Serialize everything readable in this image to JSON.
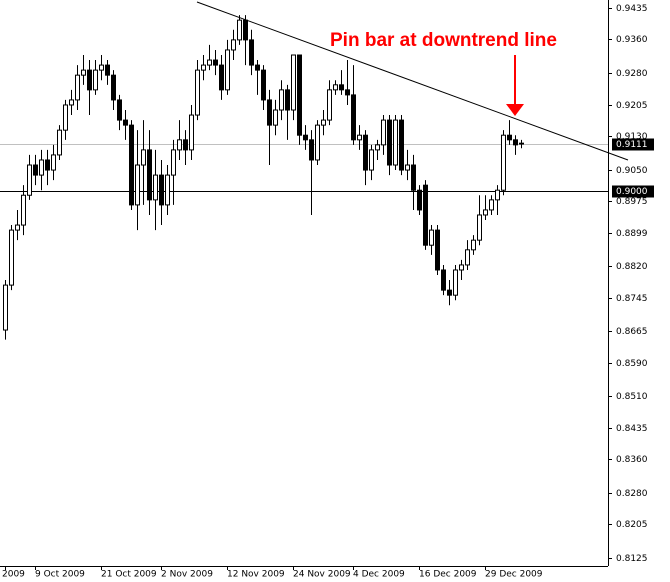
{
  "chart_data": {
    "type": "candlestick",
    "annotation": "Pin bar at downtrend line",
    "categories": [
      "2009",
      null,
      null,
      null,
      null,
      "9 Oct 2009",
      null,
      null,
      null,
      null,
      null,
      null,
      null,
      null,
      null,
      null,
      "21 Oct 2009",
      null,
      null,
      null,
      null,
      null,
      null,
      null,
      null,
      null,
      "2 Nov 2009",
      null,
      null,
      null,
      null,
      null,
      null,
      null,
      null,
      null,
      null,
      "12 Nov 2009",
      null,
      null,
      null,
      null,
      null,
      null,
      null,
      null,
      null,
      null,
      "24 Nov 2009",
      null,
      null,
      null,
      null,
      null,
      null,
      null,
      null,
      null,
      "4 Dec 2009",
      null,
      null,
      null,
      null,
      null,
      null,
      null,
      null,
      null,
      null,
      "16 Dec 2009",
      null,
      null,
      null,
      null,
      null,
      null,
      null,
      null,
      null,
      null,
      "29 Dec 2009",
      null,
      null,
      null,
      null,
      null,
      null
    ],
    "open": [
      0.8668,
      0.8775,
      0.8906,
      0.8918,
      0.8989,
      0.9061,
      0.9037,
      0.9073,
      0.9049,
      0.9085,
      0.9144,
      0.9204,
      0.9216,
      0.9275,
      0.9287,
      0.924,
      0.9287,
      0.9299,
      0.9275,
      0.9216,
      0.9168,
      0.9156,
      0.8966,
      0.9061,
      0.9097,
      0.8978,
      0.9037,
      0.8966,
      0.9037,
      0.9097,
      0.9121,
      0.9097,
      0.918,
      0.9287,
      0.9299,
      0.9311,
      0.9299,
      0.924,
      0.9335,
      0.9359,
      0.9406,
      0.9359,
      0.9299,
      0.9287,
      0.9216,
      0.9156,
      0.9192,
      0.924,
      0.9192,
      0.9323,
      0.9132,
      0.9121,
      0.9073,
      0.9156,
      0.9168,
      0.924,
      0.9252,
      0.924,
      0.9228,
      0.9121,
      0.9132,
      0.9049,
      0.9097,
      0.9109,
      0.9168,
      0.9061,
      0.9168,
      0.9049,
      0.9061,
      0.9001,
      0.9013,
      0.887,
      0.8906,
      0.8811,
      0.8763,
      0.8751,
      0.8811,
      0.8823,
      0.8859,
      0.8882,
      0.8942,
      0.8954,
      0.8978,
      0.9001,
      0.9132,
      0.9121,
      0.9113
    ],
    "high": [
      0.8787,
      0.8918,
      0.8954,
      0.9013,
      0.9085,
      0.9085,
      0.9097,
      0.9097,
      0.9109,
      0.9156,
      0.9216,
      0.924,
      0.9299,
      0.9323,
      0.9311,
      0.9311,
      0.9323,
      0.9311,
      0.9287,
      0.9228,
      0.9192,
      0.9168,
      0.9144,
      0.9168,
      0.9144,
      0.9097,
      0.9073,
      0.9061,
      0.9121,
      0.9168,
      0.9144,
      0.9204,
      0.9311,
      0.9323,
      0.9347,
      0.9335,
      0.9323,
      0.9359,
      0.9383,
      0.9418,
      0.9418,
      0.9383,
      0.9311,
      0.9299,
      0.924,
      0.9216,
      0.9263,
      0.9252,
      0.9323,
      0.9323,
      0.9156,
      0.9144,
      0.9168,
      0.9192,
      0.9263,
      0.9263,
      0.9287,
      0.9311,
      0.9299,
      0.9156,
      0.9144,
      0.9109,
      0.9121,
      0.918,
      0.918,
      0.918,
      0.918,
      0.9097,
      0.9085,
      0.9013,
      0.9025,
      0.8918,
      0.8918,
      0.8823,
      0.8787,
      0.8823,
      0.8835,
      0.8882,
      0.8894,
      0.8989,
      0.8989,
      0.8989,
      0.9013,
      0.9144,
      0.9168,
      0.9132,
      0.9121
    ],
    "low": [
      0.8645,
      0.8763,
      0.8882,
      0.8894,
      0.8978,
      0.9013,
      0.9001,
      0.9013,
      0.9025,
      0.9073,
      0.9121,
      0.918,
      0.9192,
      0.9252,
      0.918,
      0.9228,
      0.9263,
      0.9252,
      0.9192,
      0.9144,
      0.9121,
      0.8954,
      0.8906,
      0.8966,
      0.8942,
      0.8906,
      0.8918,
      0.8942,
      0.8966,
      0.9073,
      0.9061,
      0.9073,
      0.9168,
      0.9263,
      0.9287,
      0.9275,
      0.9216,
      0.9228,
      0.9311,
      0.9347,
      0.9299,
      0.9275,
      0.9228,
      0.9192,
      0.9061,
      0.9132,
      0.9168,
      0.9121,
      0.9168,
      0.9109,
      0.9097,
      0.8942,
      0.9061,
      0.9132,
      0.9156,
      0.9228,
      0.9228,
      0.9204,
      0.9109,
      0.9097,
      0.9013,
      0.9025,
      0.9073,
      0.9085,
      0.9037,
      0.9049,
      0.9037,
      0.9025,
      0.8954,
      0.8942,
      0.8859,
      0.8847,
      0.8799,
      0.8751,
      0.8727,
      0.8739,
      0.8787,
      0.8811,
      0.8847,
      0.887,
      0.893,
      0.8942,
      0.8942,
      0.8989,
      0.9109,
      0.9085,
      0.9101
    ],
    "close": [
      0.8775,
      0.8906,
      0.8918,
      0.8989,
      0.9061,
      0.9037,
      0.9073,
      0.9049,
      0.9085,
      0.9144,
      0.9204,
      0.9216,
      0.9275,
      0.9287,
      0.924,
      0.9287,
      0.9299,
      0.9275,
      0.9216,
      0.9168,
      0.9156,
      0.8966,
      0.9061,
      0.9097,
      0.8978,
      0.9037,
      0.8966,
      0.9037,
      0.9097,
      0.9121,
      0.9097,
      0.918,
      0.9287,
      0.9299,
      0.9311,
      0.9299,
      0.924,
      0.9335,
      0.9359,
      0.9406,
      0.9359,
      0.9299,
      0.9287,
      0.9216,
      0.9156,
      0.9192,
      0.924,
      0.9192,
      0.9323,
      0.9132,
      0.9121,
      0.9073,
      0.9156,
      0.9168,
      0.924,
      0.9252,
      0.924,
      0.9228,
      0.9121,
      0.9132,
      0.9049,
      0.9097,
      0.9109,
      0.9168,
      0.9061,
      0.9168,
      0.9049,
      0.9061,
      0.9001,
      0.8954,
      0.887,
      0.8906,
      0.8811,
      0.8763,
      0.8751,
      0.8811,
      0.8823,
      0.8859,
      0.8882,
      0.8942,
      0.8954,
      0.8978,
      0.9001,
      0.9132,
      0.9121,
      0.9109,
      0.9111
    ],
    "up_color": "#ffffff",
    "down_color": "#000000",
    "ylim": [
      0.8106,
      0.9454
    ],
    "yticks": [
      0.9435,
      {
        "value": 0.936,
        "label": "0.9360"
      },
      {
        "value": 0.928,
        "label": "0.9280"
      },
      0.9205,
      {
        "value": 0.913,
        "label": "0.9130"
      },
      {
        "value": 0.905,
        "label": "0.9050"
      },
      0.8975,
      0.8899,
      {
        "value": 0.882,
        "label": "0.8820"
      },
      0.8745,
      0.8665,
      {
        "value": 0.859,
        "label": "0.8590"
      },
      {
        "value": 0.851,
        "label": "0.8510"
      },
      0.8435,
      {
        "value": 0.836,
        "label": "0.8360"
      },
      {
        "value": 0.828,
        "label": "0.8280"
      },
      0.8205,
      0.8125
    ],
    "levels": [
      0.9111,
      {
        "value": 0.9,
        "label": "0.9000"
      }
    ],
    "level_colors": [
      "#c0c0c0",
      "#000000"
    ]
  }
}
